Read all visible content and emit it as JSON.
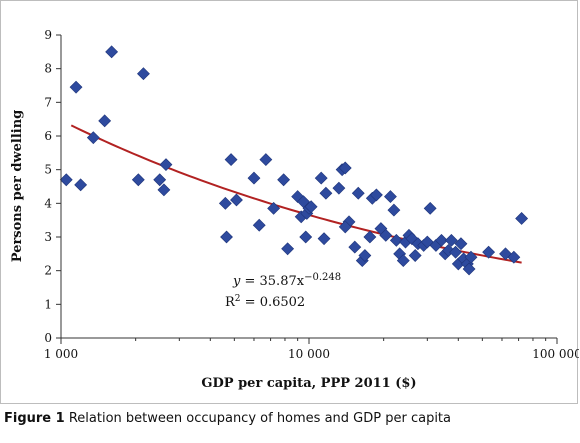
{
  "chart_data": {
    "type": "scatter",
    "xlabel": "GDP per capita, PPP 2011 ($)",
    "ylabel": "Persons per dwelling",
    "x_scale": "log",
    "xlim": [
      1000,
      100000
    ],
    "ylim": [
      0,
      9
    ],
    "x_ticks": [
      "1 000",
      "10 000",
      "100 000"
    ],
    "y_ticks": [
      "0",
      "1",
      "2",
      "3",
      "4",
      "5",
      "6",
      "7",
      "8",
      "9"
    ],
    "grid": false,
    "marker_color": "#2E4A9E",
    "trend_color": "#B22222",
    "trendline": {
      "equation_lhs": "y",
      "equation_rhs": " = 35.87x",
      "exponent": "−0.248",
      "r2_label": "R",
      "r2_power": "2",
      "r2_value": " = 0.6502",
      "a": 35.87,
      "b": -0.248,
      "x_range": [
        1100,
        72000
      ]
    },
    "points": [
      {
        "x": 1050,
        "y": 4.7
      },
      {
        "x": 1150,
        "y": 7.45
      },
      {
        "x": 1200,
        "y": 4.55
      },
      {
        "x": 1350,
        "y": 5.95
      },
      {
        "x": 1500,
        "y": 6.45
      },
      {
        "x": 1600,
        "y": 8.5
      },
      {
        "x": 2050,
        "y": 4.7
      },
      {
        "x": 2150,
        "y": 7.85
      },
      {
        "x": 2500,
        "y": 4.7
      },
      {
        "x": 2600,
        "y": 4.4
      },
      {
        "x": 2650,
        "y": 5.15
      },
      {
        "x": 4600,
        "y": 4.0
      },
      {
        "x": 4650,
        "y": 3.0
      },
      {
        "x": 4850,
        "y": 5.3
      },
      {
        "x": 5100,
        "y": 4.1
      },
      {
        "x": 6000,
        "y": 4.75
      },
      {
        "x": 6300,
        "y": 3.35
      },
      {
        "x": 6700,
        "y": 5.3
      },
      {
        "x": 7200,
        "y": 3.85
      },
      {
        "x": 7900,
        "y": 4.7
      },
      {
        "x": 8200,
        "y": 2.65
      },
      {
        "x": 9000,
        "y": 4.2
      },
      {
        "x": 9300,
        "y": 3.6
      },
      {
        "x": 9500,
        "y": 4.05
      },
      {
        "x": 9700,
        "y": 3.0
      },
      {
        "x": 9800,
        "y": 3.7
      },
      {
        "x": 10000,
        "y": 3.85
      },
      {
        "x": 10200,
        "y": 3.9
      },
      {
        "x": 11200,
        "y": 4.75
      },
      {
        "x": 11500,
        "y": 2.95
      },
      {
        "x": 11700,
        "y": 4.3
      },
      {
        "x": 13200,
        "y": 4.45
      },
      {
        "x": 13600,
        "y": 5.0
      },
      {
        "x": 14000,
        "y": 5.05
      },
      {
        "x": 14500,
        "y": 3.45
      },
      {
        "x": 14000,
        "y": 3.3
      },
      {
        "x": 15300,
        "y": 2.7
      },
      {
        "x": 15800,
        "y": 4.3
      },
      {
        "x": 16400,
        "y": 2.3
      },
      {
        "x": 16800,
        "y": 2.45
      },
      {
        "x": 17600,
        "y": 3.0
      },
      {
        "x": 18000,
        "y": 4.15
      },
      {
        "x": 18700,
        "y": 4.25
      },
      {
        "x": 19500,
        "y": 3.25
      },
      {
        "x": 20400,
        "y": 3.05
      },
      {
        "x": 21300,
        "y": 4.2
      },
      {
        "x": 22000,
        "y": 3.8
      },
      {
        "x": 22500,
        "y": 2.9
      },
      {
        "x": 23200,
        "y": 2.5
      },
      {
        "x": 24000,
        "y": 2.3
      },
      {
        "x": 24500,
        "y": 2.85
      },
      {
        "x": 25300,
        "y": 3.05
      },
      {
        "x": 26000,
        "y": 2.95
      },
      {
        "x": 26800,
        "y": 2.45
      },
      {
        "x": 27500,
        "y": 2.8
      },
      {
        "x": 29000,
        "y": 2.75
      },
      {
        "x": 30000,
        "y": 2.85
      },
      {
        "x": 30800,
        "y": 3.85
      },
      {
        "x": 32500,
        "y": 2.75
      },
      {
        "x": 34200,
        "y": 2.9
      },
      {
        "x": 35400,
        "y": 2.5
      },
      {
        "x": 36500,
        "y": 2.6
      },
      {
        "x": 37500,
        "y": 2.9
      },
      {
        "x": 39000,
        "y": 2.55
      },
      {
        "x": 40000,
        "y": 2.2
      },
      {
        "x": 41000,
        "y": 2.8
      },
      {
        "x": 42000,
        "y": 2.35
      },
      {
        "x": 43500,
        "y": 2.2
      },
      {
        "x": 44200,
        "y": 2.05
      },
      {
        "x": 45000,
        "y": 2.4
      },
      {
        "x": 53000,
        "y": 2.55
      },
      {
        "x": 62000,
        "y": 2.5
      },
      {
        "x": 67000,
        "y": 2.4
      },
      {
        "x": 72000,
        "y": 3.55
      }
    ]
  },
  "caption": {
    "label": "Figure 1",
    "text": " Relation between occupancy of homes and GDP per capita"
  }
}
